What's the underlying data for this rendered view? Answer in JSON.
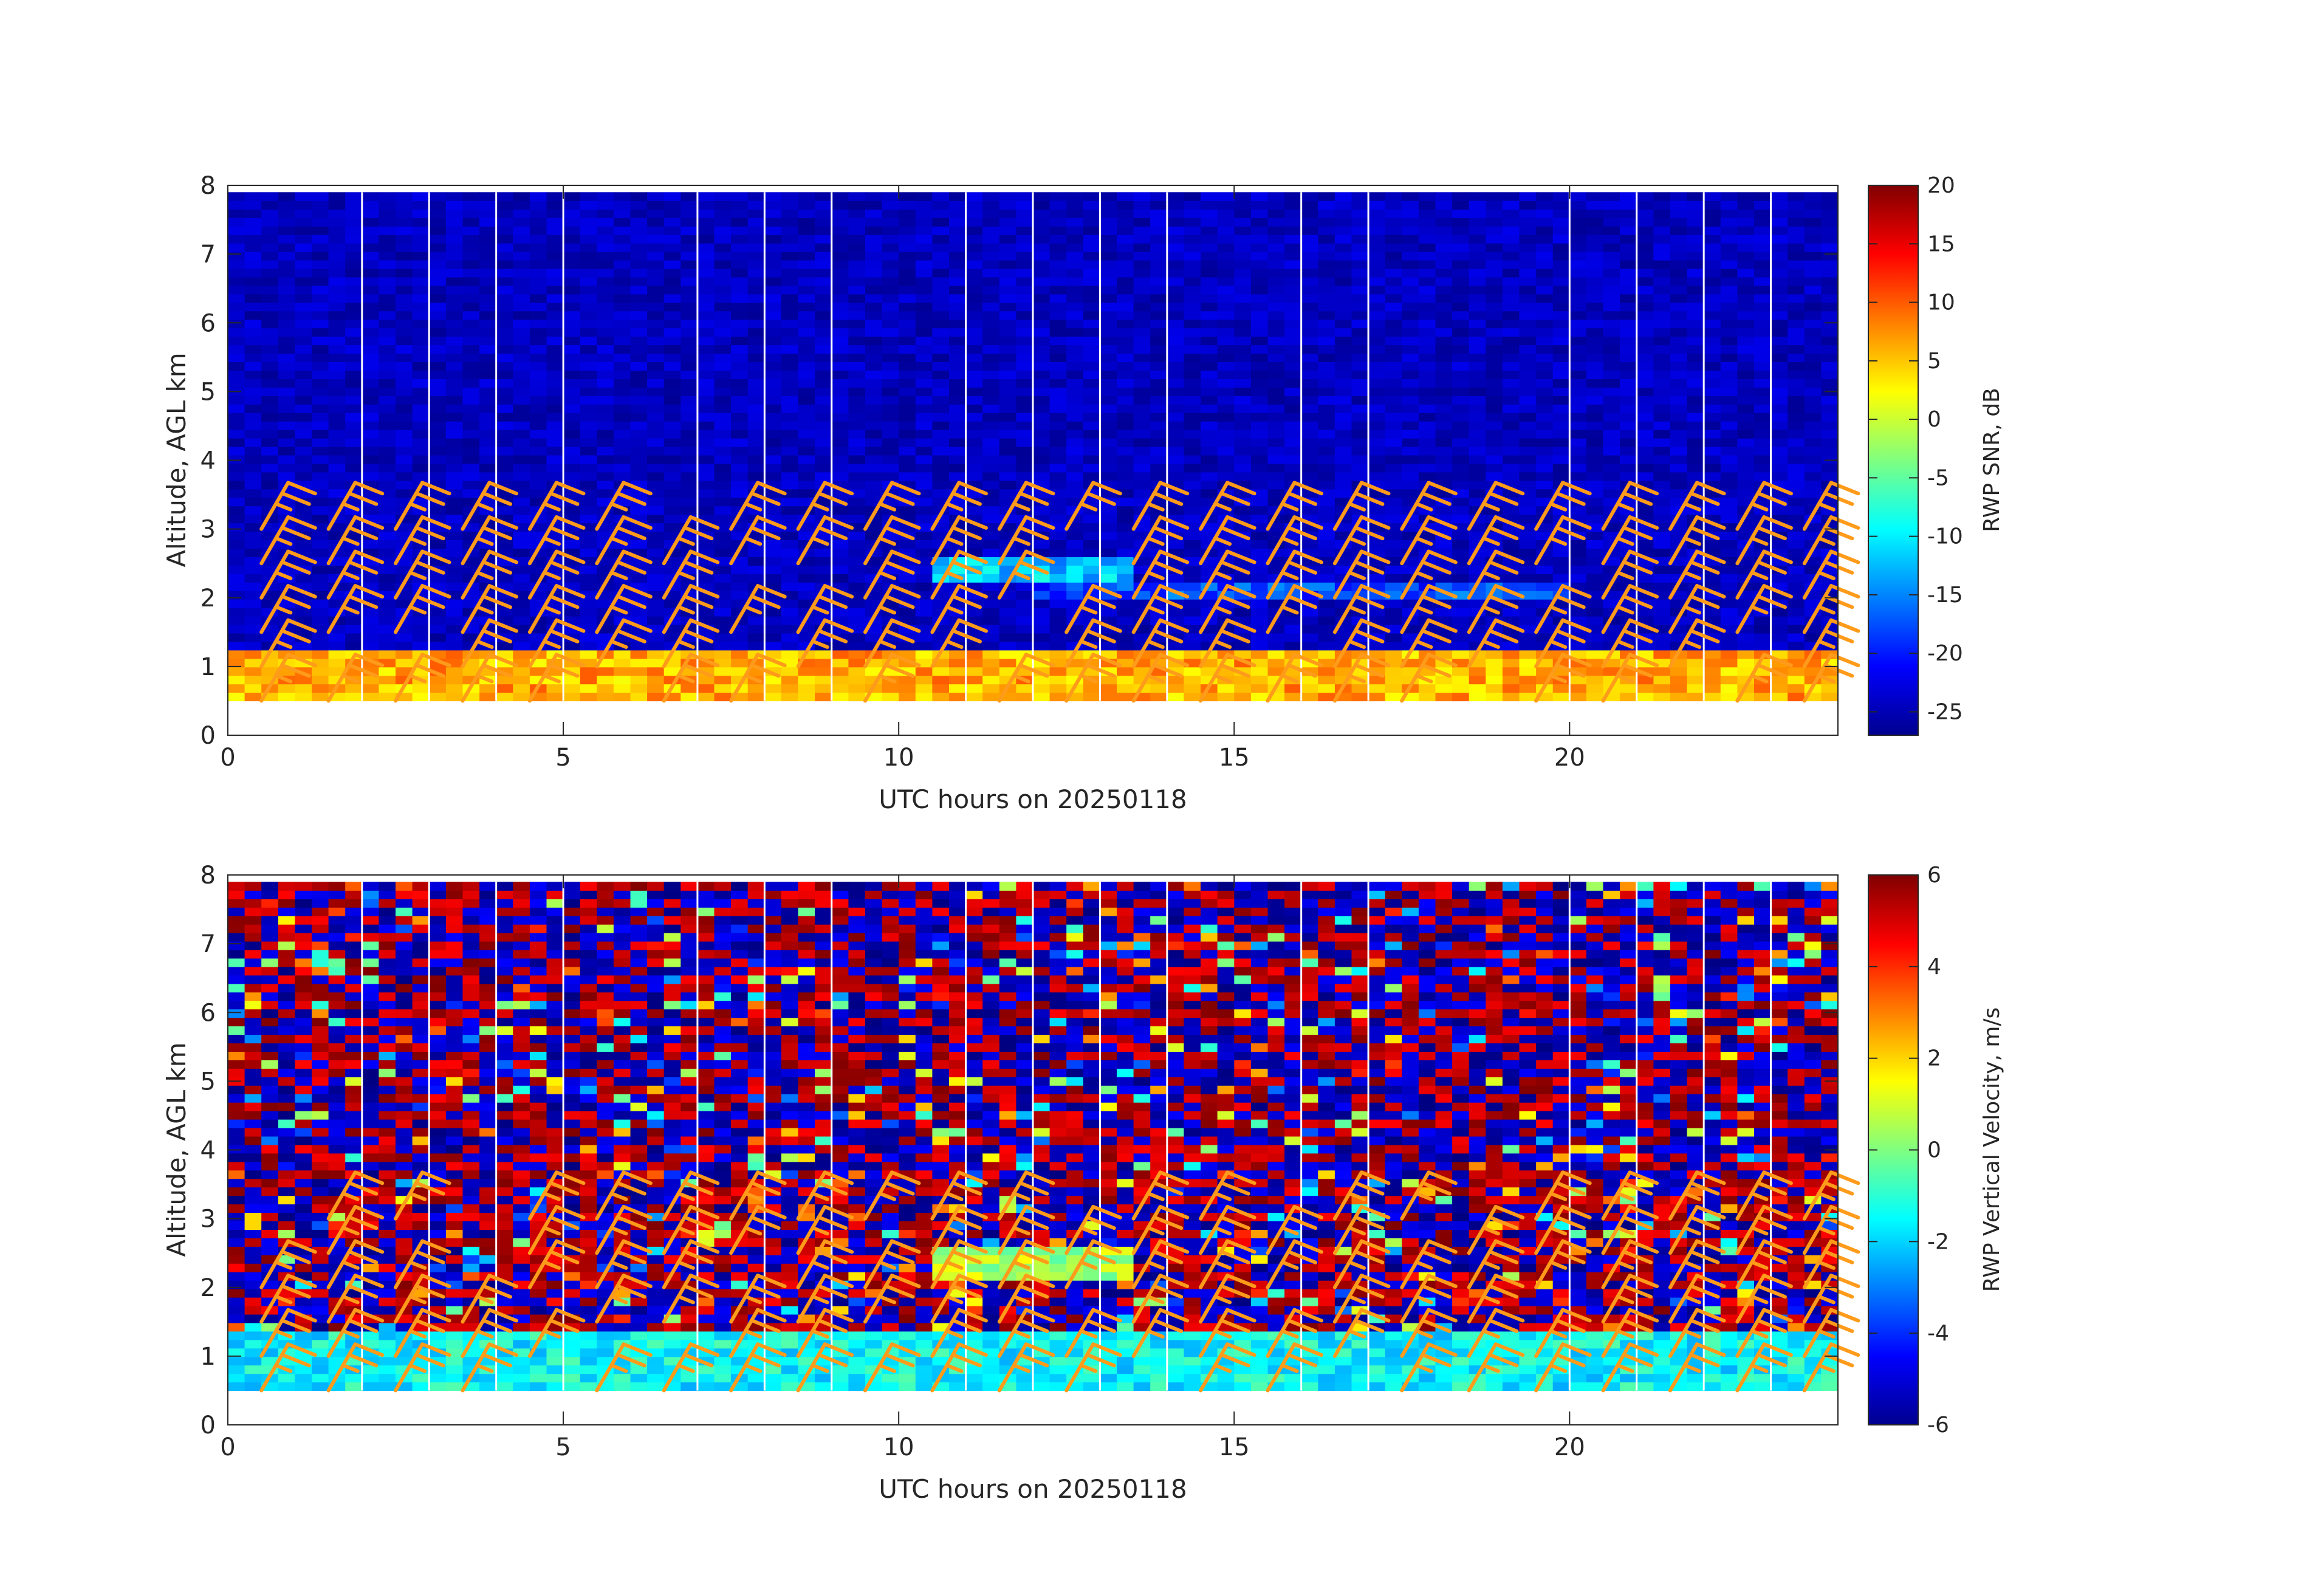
{
  "colors": {
    "barb": "#FF9B1A",
    "axis": "#262626",
    "background": "#FFFFFF",
    "colormap": "jet"
  },
  "chart_data": [
    {
      "type": "heatmap",
      "title": "",
      "xlabel": "UTC hours on 20250118",
      "ylabel": "Altitude, AGL km",
      "xlim": [
        0,
        24
      ],
      "ylim": [
        0,
        8
      ],
      "x_ticks": [
        "0",
        "5",
        "10",
        "15",
        "20"
      ],
      "y_ticks": [
        "0",
        "1",
        "2",
        "3",
        "4",
        "5",
        "6",
        "7",
        "8"
      ],
      "colorbar": {
        "label": "RWP SNR, dB",
        "range": [
          -27,
          20
        ],
        "ticks": [
          "20",
          "15",
          "10",
          "5",
          "0",
          "-5",
          "-10",
          "-15",
          "-20",
          "-25"
        ]
      },
      "data_gap_hours": [
        2,
        3,
        4,
        5,
        7,
        8,
        9,
        11,
        12,
        13,
        14,
        16,
        17,
        20,
        21,
        22,
        23
      ],
      "data_altitude_range_km": [
        0.5,
        7.9
      ],
      "layers": [
        {
          "name": "boundary layer",
          "start_h": 0,
          "end_h": 24,
          "bottom_km": 0.5,
          "top_km": 1.2,
          "level": 6
        },
        {
          "name": "elevated layer",
          "start_h": 10.5,
          "end_h": 13.5,
          "bottom_km": 2.2,
          "top_km": 2.5,
          "level": -12
        },
        {
          "name": "upper layer",
          "start_h": 12,
          "end_h": 20,
          "bottom_km": 1.9,
          "top_km": 2.2,
          "level": -18
        }
      ],
      "background_level": -24,
      "wind_barbs": {
        "times_h": [
          0.5,
          1.5,
          2.5,
          3.5,
          4.5,
          5.5,
          6.5,
          7.5,
          8.5,
          9.5,
          10.5,
          11.5,
          12.5,
          13.5,
          14.5,
          15.5,
          16.5,
          17.5,
          18.5,
          19.5,
          20.5,
          21.5,
          22.5,
          23.5
        ],
        "heights_km": [
          0.5,
          1.0,
          1.5,
          2.0,
          2.5,
          3.0
        ],
        "speed_kt": 25
      }
    },
    {
      "type": "heatmap",
      "title": "",
      "xlabel": "UTC hours on 20250118",
      "ylabel": "Altitude, AGL km",
      "xlim": [
        0,
        24
      ],
      "ylim": [
        0,
        8
      ],
      "x_ticks": [
        "0",
        "5",
        "10",
        "15",
        "20"
      ],
      "y_ticks": [
        "0",
        "1",
        "2",
        "3",
        "4",
        "5",
        "6",
        "7",
        "8"
      ],
      "colorbar": {
        "label": "RWP Vertical Velocity, m/s",
        "range": [
          -6,
          6
        ],
        "ticks": [
          "6",
          "4",
          "2",
          "0",
          "-2",
          "-4",
          "-6"
        ]
      },
      "data_gap_hours": [
        2,
        3,
        4,
        5,
        7,
        8,
        9,
        11,
        12,
        13,
        14,
        16,
        17,
        20,
        21,
        22,
        23
      ],
      "data_altitude_range_km": [
        0.5,
        7.9
      ],
      "layers": [
        {
          "name": "boundary layer",
          "start_h": 0,
          "end_h": 24,
          "bottom_km": 0.5,
          "top_km": 1.3,
          "level": -1.5
        },
        {
          "name": "elevated layer",
          "start_h": 10.5,
          "end_h": 13.5,
          "bottom_km": 2.1,
          "top_km": 2.5,
          "level": 0.5
        }
      ],
      "background_level": "noise",
      "wind_barbs": {
        "times_h": [
          0.5,
          1.5,
          2.5,
          3.5,
          4.5,
          5.5,
          6.5,
          7.5,
          8.5,
          9.5,
          10.5,
          11.5,
          12.5,
          13.5,
          14.5,
          15.5,
          16.5,
          17.5,
          18.5,
          19.5,
          20.5,
          21.5,
          22.5,
          23.5
        ],
        "heights_km": [
          0.5,
          1.0,
          1.5,
          2.0,
          2.5,
          3.0
        ],
        "speed_kt": 25
      }
    }
  ]
}
